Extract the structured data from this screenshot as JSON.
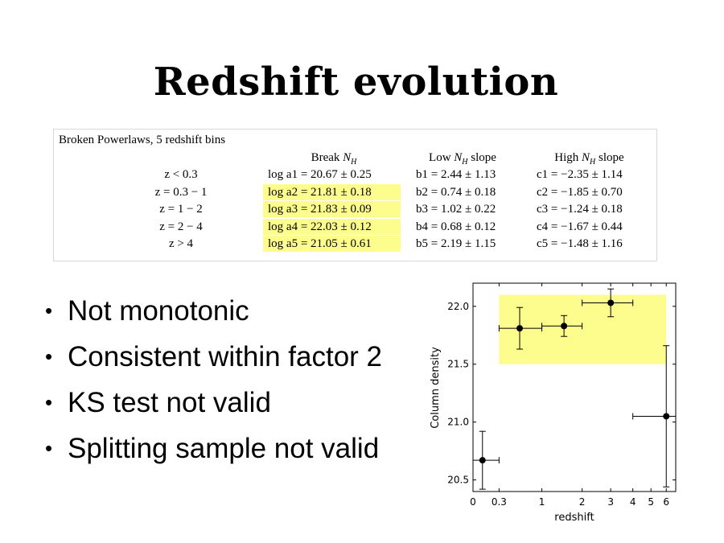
{
  "slide": {
    "title": "Redshift evolution",
    "bullets": [
      "Not monotonic",
      "Consistent within factor 2",
      "KS test not valid",
      "Splitting sample not valid"
    ]
  },
  "table": {
    "caption": "Broken Powerlaws, 5 redshift bins",
    "headers": [
      "",
      "Break N_H",
      "Low N_H slope",
      "High N_H slope"
    ],
    "rows": [
      {
        "bin": "z < 0.3",
        "break": "log a1 = 20.67 ± 0.25",
        "low": "b1 = 2.44 ± 1.13",
        "high": "c1 = −2.35 ± 1.14",
        "highlight": false
      },
      {
        "bin": "z = 0.3 − 1",
        "break": "log a2 = 21.81 ± 0.18",
        "low": "b2 = 0.74 ± 0.18",
        "high": "c2 = −1.85 ± 0.70",
        "highlight": true
      },
      {
        "bin": "z = 1 − 2",
        "break": "log a3 = 21.83 ± 0.09",
        "low": "b3 = 1.02 ± 0.22",
        "high": "c3 = −1.24 ± 0.18",
        "highlight": true
      },
      {
        "bin": "z = 2 − 4",
        "break": "log a4 = 22.03 ± 0.12",
        "low": "b4 = 0.68 ± 0.12",
        "high": "c4 = −1.67 ± 0.44",
        "highlight": true
      },
      {
        "bin": "z > 4",
        "break": "log a5 = 21.05 ± 0.61",
        "low": "b5 = 2.19 ± 1.15",
        "high": "c5 = −1.48 ± 1.16",
        "highlight": true
      }
    ],
    "highlight_color": "#fdfd8e"
  },
  "chart_data": {
    "type": "scatter",
    "title": "",
    "xlabel": "redshift",
    "ylabel": "Column density",
    "x_scale": "log(1+z)",
    "xlim": [
      0,
      6.7
    ],
    "ylim": [
      20.4,
      22.2
    ],
    "x_ticks": [
      0,
      0.3,
      1,
      2,
      3,
      4,
      5,
      6
    ],
    "x_tick_labels": [
      "0",
      "0.3",
      "1",
      "2",
      "3",
      "4",
      "5",
      "6"
    ],
    "y_ticks": [
      20.5,
      21.0,
      21.5,
      22.0
    ],
    "y_tick_labels": [
      "20.5",
      "21.0",
      "21.5",
      "22.0"
    ],
    "points": [
      {
        "z_min": 0,
        "z_max": 0.3,
        "z": 0.1,
        "y": 20.67,
        "yerr": 0.25
      },
      {
        "z_min": 0.3,
        "z_max": 1,
        "z": 0.6,
        "y": 21.81,
        "yerr": 0.18
      },
      {
        "z_min": 1,
        "z_max": 2,
        "z": 1.5,
        "y": 21.83,
        "yerr": 0.09
      },
      {
        "z_min": 2,
        "z_max": 4,
        "z": 3.0,
        "y": 22.03,
        "yerr": 0.12
      },
      {
        "z_min": 4,
        "z_max": 7,
        "z": 6.0,
        "y": 21.05,
        "yerr": 0.61
      }
    ],
    "highlight_band": {
      "z_min": 0.3,
      "z_max": 6,
      "y_min": 21.5,
      "y_max": 22.1,
      "color": "#fdfd8e"
    },
    "grid": false,
    "marker_color": "#000000"
  }
}
